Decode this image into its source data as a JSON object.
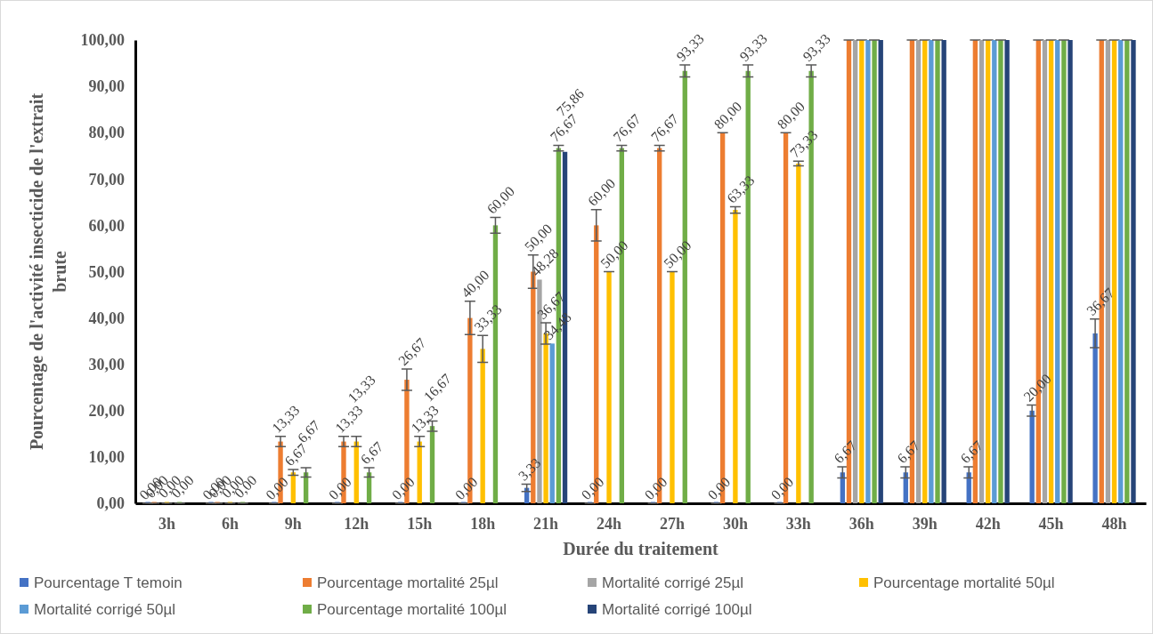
{
  "chart_data": {
    "type": "bar",
    "xlabel": "Durée du traitement",
    "ylabel": "Pourcentage de l'activité insecticide de l'extrait brute",
    "categories": [
      "3h",
      "6h",
      "9h",
      "12h",
      "15h",
      "18h",
      "21h",
      "24h",
      "27h",
      "30h",
      "33h",
      "36h",
      "39h",
      "42h",
      "45h",
      "48h"
    ],
    "ylim": [
      0,
      100
    ],
    "yticks": [
      {
        "value": 0,
        "label": "0,00"
      },
      {
        "value": 10,
        "label": "10,00"
      },
      {
        "value": 20,
        "label": "20,00"
      },
      {
        "value": 30,
        "label": "30,00"
      },
      {
        "value": 40,
        "label": "40,00"
      },
      {
        "value": 50,
        "label": "50,00"
      },
      {
        "value": 60,
        "label": "60,00"
      },
      {
        "value": 70,
        "label": "70,00"
      },
      {
        "value": 80,
        "label": "80,00"
      },
      {
        "value": 90,
        "label": "90,00"
      },
      {
        "value": 100,
        "label": "100,00"
      }
    ],
    "grid": false,
    "legend": "bottom",
    "series": [
      {
        "name": "Pourcentage T temoin",
        "color": "#4472c4",
        "values": [
          0,
          0,
          0,
          0,
          0,
          0,
          3.33,
          0,
          0,
          0,
          0,
          6.67,
          6.67,
          6.67,
          20,
          36.67
        ],
        "errors": [
          0,
          0,
          0,
          0,
          0,
          0,
          0.8,
          0,
          0,
          0,
          0,
          1.2,
          1.2,
          1.2,
          1.2,
          3.1
        ],
        "value_labels": [
          "0,00",
          "0,00",
          "0,00",
          "0,00",
          "0,00",
          "0,00",
          "3,33",
          "0,00",
          "0,00",
          "0,00",
          "0,00",
          "6,67",
          "6,67",
          "6,67",
          "20,00",
          "36,67"
        ]
      },
      {
        "name": "Pourcentage mortalité 25µl",
        "color": "#ed7d31",
        "values": [
          0,
          0,
          13.33,
          13.33,
          26.67,
          40,
          50,
          60,
          76.67,
          80,
          80,
          100,
          100,
          100,
          100,
          100
        ],
        "errors": [
          0,
          0,
          1.1,
          1.1,
          2.3,
          3.6,
          3.6,
          3.4,
          0.6,
          0,
          0,
          0,
          0,
          0,
          0,
          0
        ],
        "value_labels": [
          "0,00",
          "0,00",
          "13,33",
          "13,33",
          "26,67",
          "40,00",
          "50,00",
          "60,00",
          "76,67",
          "80,00",
          "80,00",
          null,
          null,
          null,
          null,
          null
        ]
      },
      {
        "name": "Mortalité corrigé 25µl",
        "color": "#a5a5a5",
        "values": [
          null,
          null,
          null,
          null,
          null,
          null,
          48.28,
          null,
          null,
          null,
          null,
          100,
          100,
          100,
          100,
          100
        ],
        "value_labels": [
          null,
          null,
          null,
          null,
          null,
          null,
          "48,28",
          null,
          null,
          null,
          null,
          null,
          null,
          null,
          null,
          null
        ]
      },
      {
        "name": "Pourcentage mortalité 50µl",
        "color": "#ffc000",
        "values": [
          0,
          0,
          6.67,
          13.33,
          13.33,
          33.33,
          36.67,
          50,
          50,
          63.33,
          73.33,
          100,
          100,
          100,
          100,
          100
        ],
        "errors": [
          0,
          0,
          0.6,
          1.1,
          1.1,
          2.9,
          2.3,
          0,
          0,
          0.7,
          0.5,
          0,
          0,
          0,
          0,
          0
        ],
        "value_labels": [
          "0,00",
          "0,00",
          "6,67",
          "13,33",
          "13,33",
          "33,33",
          "36,67",
          "50,00",
          "50,00",
          "63,33",
          "73,33",
          null,
          null,
          null,
          null,
          null
        ]
      },
      {
        "name": "Mortalité corrigé 50µl",
        "color": "#5b9bd5",
        "values": [
          null,
          null,
          null,
          null,
          null,
          null,
          34.48,
          null,
          null,
          null,
          null,
          100,
          100,
          100,
          100,
          100
        ],
        "value_labels": [
          null,
          null,
          null,
          null,
          null,
          null,
          "34,48",
          null,
          null,
          null,
          null,
          null,
          null,
          null,
          null,
          null
        ]
      },
      {
        "name": "Pourcentage mortalité 100µl",
        "color": "#70ad47",
        "values": [
          0,
          0,
          6.67,
          6.67,
          16.67,
          60,
          76.67,
          76.67,
          93.33,
          93.33,
          93.33,
          100,
          100,
          100,
          100,
          100
        ],
        "errors": [
          0,
          0,
          1,
          1,
          1.1,
          1.7,
          0.6,
          0.6,
          1.3,
          1.3,
          1.3,
          0,
          0,
          0,
          0,
          0
        ],
        "value_labels": [
          "0,00",
          "0,00",
          "6,67",
          "6,67",
          "16,67",
          "60,00",
          "76,67",
          "76,67",
          "93,33",
          "93,33",
          "93,33",
          null,
          null,
          null,
          null,
          null
        ]
      },
      {
        "name": "Mortalité corrigé 100µl",
        "color": "#264478",
        "values": [
          null,
          null,
          null,
          null,
          null,
          null,
          75.86,
          null,
          null,
          null,
          null,
          100,
          100,
          100,
          100,
          100
        ],
        "value_labels": [
          null,
          null,
          null,
          null,
          null,
          null,
          "75,86",
          null,
          null,
          null,
          null,
          null,
          null,
          null,
          null,
          null
        ]
      }
    ]
  }
}
